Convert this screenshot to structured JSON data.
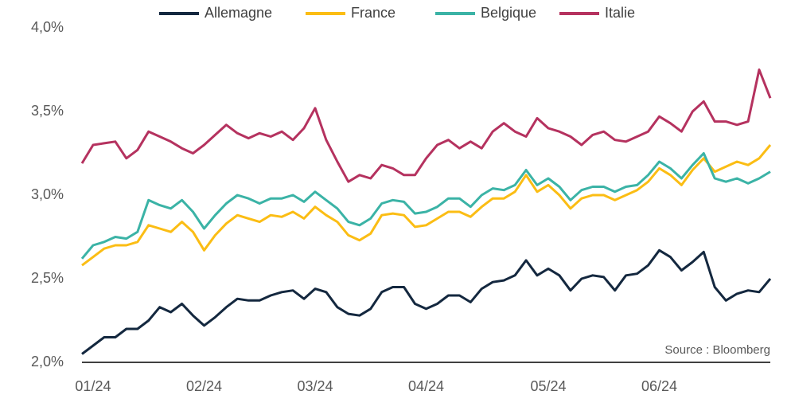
{
  "chart_data": {
    "type": "line",
    "legend": "top",
    "grid": false,
    "annotation": "Source : Bloomberg",
    "categories": [
      null,
      "01/24",
      null,
      null,
      null,
      null,
      null,
      null,
      null,
      null,
      null,
      "02/24",
      null,
      null,
      null,
      null,
      null,
      null,
      null,
      null,
      null,
      "03/24",
      null,
      null,
      null,
      null,
      null,
      null,
      null,
      null,
      null,
      "04/24",
      null,
      null,
      null,
      null,
      null,
      null,
      null,
      null,
      null,
      null,
      "05/24",
      null,
      null,
      null,
      null,
      null,
      null,
      null,
      null,
      null,
      "06/24",
      null,
      null,
      null,
      null,
      null,
      null,
      null,
      null,
      null,
      null
    ],
    "ylim": [
      2.0,
      4.0
    ],
    "yticks": [
      {
        "value": 2.0,
        "label": "2,0%"
      },
      {
        "value": 2.5,
        "label": "2,5%"
      },
      {
        "value": 3.0,
        "label": "3,0%"
      },
      {
        "value": 3.5,
        "label": "3,5%"
      },
      {
        "value": 4.0,
        "label": "4,0%"
      }
    ],
    "series": [
      {
        "name": "Allemagne",
        "color": "#14283f",
        "values": [
          2.05,
          2.1,
          2.15,
          2.15,
          2.2,
          2.2,
          2.25,
          2.33,
          2.3,
          2.35,
          2.28,
          2.22,
          2.27,
          2.33,
          2.38,
          2.37,
          2.37,
          2.4,
          2.42,
          2.43,
          2.38,
          2.44,
          2.42,
          2.33,
          2.29,
          2.28,
          2.32,
          2.42,
          2.45,
          2.45,
          2.35,
          2.32,
          2.35,
          2.4,
          2.4,
          2.36,
          2.44,
          2.48,
          2.49,
          2.52,
          2.61,
          2.52,
          2.56,
          2.52,
          2.43,
          2.5,
          2.52,
          2.51,
          2.43,
          2.52,
          2.53,
          2.58,
          2.67,
          2.63,
          2.55,
          2.6,
          2.66,
          2.45,
          2.37,
          2.41,
          2.43,
          2.42,
          2.5
        ]
      },
      {
        "name": "France",
        "color": "#fbbd14",
        "values": [
          2.58,
          2.63,
          2.68,
          2.7,
          2.7,
          2.72,
          2.82,
          2.8,
          2.78,
          2.84,
          2.78,
          2.67,
          2.76,
          2.83,
          2.88,
          2.86,
          2.84,
          2.88,
          2.87,
          2.9,
          2.86,
          2.93,
          2.88,
          2.84,
          2.76,
          2.73,
          2.77,
          2.88,
          2.89,
          2.88,
          2.81,
          2.82,
          2.86,
          2.9,
          2.9,
          2.87,
          2.93,
          2.98,
          2.98,
          3.02,
          3.12,
          3.02,
          3.06,
          3.0,
          2.92,
          2.98,
          3.0,
          3.0,
          2.97,
          3.0,
          3.03,
          3.08,
          3.16,
          3.12,
          3.06,
          3.15,
          3.22,
          3.14,
          3.17,
          3.2,
          3.18,
          3.22,
          3.3
        ]
      },
      {
        "name": "Belgique",
        "color": "#3bb3a6",
        "values": [
          2.62,
          2.7,
          2.72,
          2.75,
          2.74,
          2.78,
          2.97,
          2.94,
          2.92,
          2.97,
          2.9,
          2.8,
          2.88,
          2.95,
          3.0,
          2.98,
          2.95,
          2.98,
          2.98,
          3.0,
          2.96,
          3.02,
          2.97,
          2.92,
          2.84,
          2.82,
          2.86,
          2.95,
          2.97,
          2.96,
          2.89,
          2.9,
          2.93,
          2.98,
          2.98,
          2.93,
          3.0,
          3.04,
          3.03,
          3.06,
          3.15,
          3.06,
          3.1,
          3.05,
          2.97,
          3.03,
          3.05,
          3.05,
          3.02,
          3.05,
          3.06,
          3.12,
          3.2,
          3.16,
          3.1,
          3.18,
          3.25,
          3.1,
          3.08,
          3.1,
          3.07,
          3.1,
          3.14
        ]
      },
      {
        "name": "Italie",
        "color": "#b5325f",
        "values": [
          3.19,
          3.3,
          3.31,
          3.32,
          3.22,
          3.27,
          3.38,
          3.35,
          3.32,
          3.28,
          3.25,
          3.3,
          3.36,
          3.42,
          3.37,
          3.34,
          3.37,
          3.35,
          3.38,
          3.33,
          3.4,
          3.52,
          3.33,
          3.2,
          3.08,
          3.12,
          3.1,
          3.18,
          3.16,
          3.12,
          3.12,
          3.22,
          3.3,
          3.33,
          3.28,
          3.32,
          3.28,
          3.38,
          3.43,
          3.38,
          3.35,
          3.46,
          3.4,
          3.38,
          3.35,
          3.3,
          3.36,
          3.38,
          3.33,
          3.32,
          3.35,
          3.38,
          3.47,
          3.43,
          3.38,
          3.5,
          3.56,
          3.44,
          3.44,
          3.42,
          3.44,
          3.75,
          3.58
        ]
      }
    ]
  }
}
